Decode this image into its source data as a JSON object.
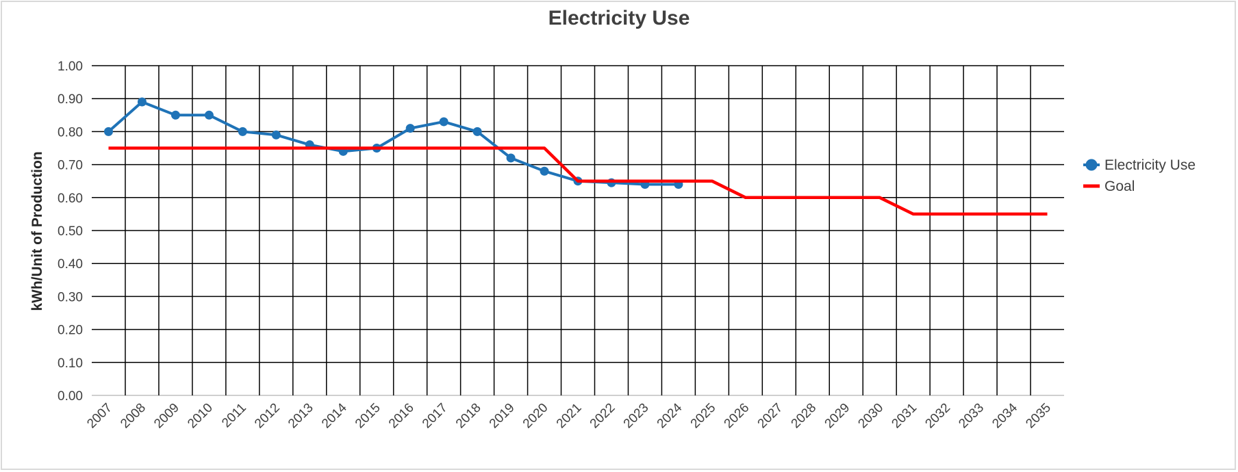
{
  "chart_data": {
    "type": "line",
    "title": "Electricity Use",
    "xlabel": "",
    "ylabel": "kWh/Unit of Production",
    "ylim": [
      0,
      1
    ],
    "y_ticks": [
      "0.00",
      "0.10",
      "0.20",
      "0.30",
      "0.40",
      "0.50",
      "0.60",
      "0.70",
      "0.80",
      "0.90",
      "1.00"
    ],
    "categories": [
      "2007",
      "2008",
      "2009",
      "2010",
      "2011",
      "2012",
      "2013",
      "2014",
      "2015",
      "2016",
      "2017",
      "2018",
      "2019",
      "2020",
      "2021",
      "2022",
      "2023",
      "2024",
      "2025",
      "2026",
      "2027",
      "2028",
      "2029",
      "2030",
      "2031",
      "2032",
      "2033",
      "2034",
      "2035"
    ],
    "grid": true,
    "legend_position": "right",
    "series": [
      {
        "name": "Electricity Use",
        "color": "#1f73b7",
        "marker": "circle",
        "values": [
          0.8,
          0.89,
          0.85,
          0.85,
          0.8,
          0.79,
          0.76,
          0.74,
          0.75,
          0.81,
          0.83,
          0.8,
          0.72,
          0.68,
          0.65,
          0.645,
          0.64,
          0.64,
          null,
          null,
          null,
          null,
          null,
          null,
          null,
          null,
          null,
          null,
          null
        ]
      },
      {
        "name": "Goal",
        "color": "#ff0000",
        "marker": "none",
        "values": [
          0.75,
          0.75,
          0.75,
          0.75,
          0.75,
          0.75,
          0.75,
          0.75,
          0.75,
          0.75,
          0.75,
          0.75,
          0.75,
          0.75,
          0.65,
          0.65,
          0.65,
          0.65,
          0.65,
          0.6,
          0.6,
          0.6,
          0.6,
          0.6,
          0.55,
          0.55,
          0.55,
          0.55,
          0.55
        ]
      }
    ]
  }
}
